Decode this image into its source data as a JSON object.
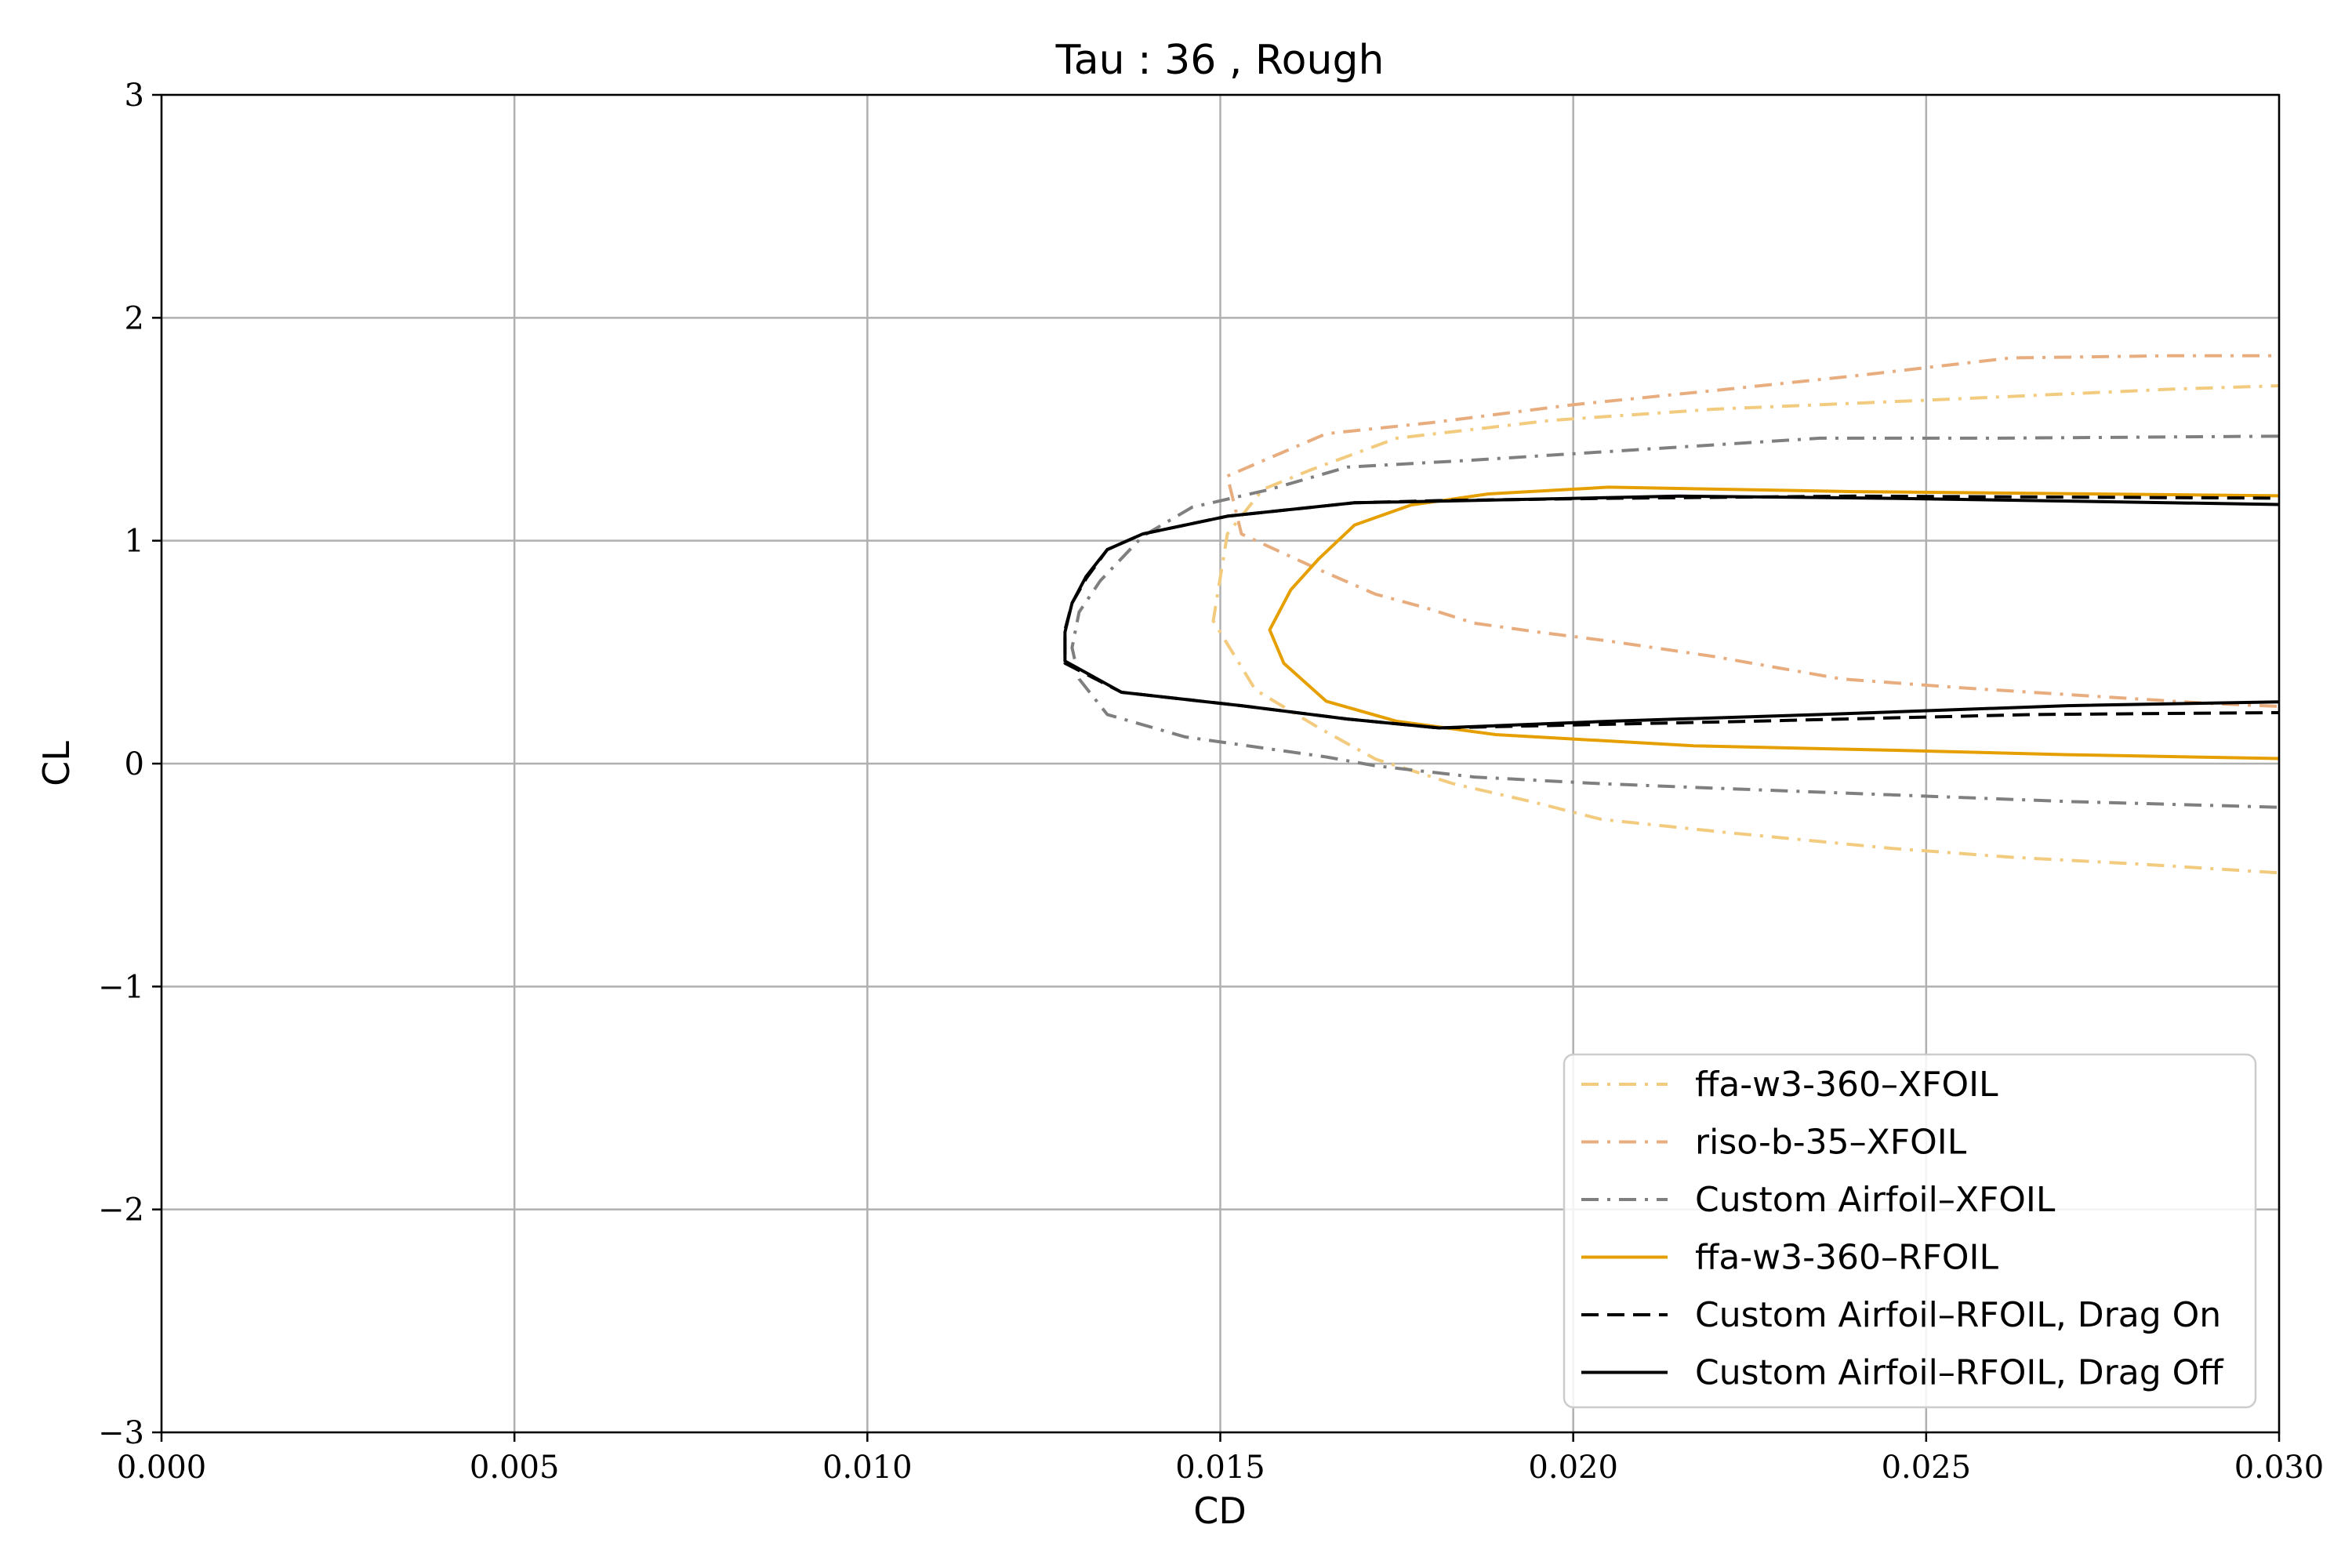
{
  "chart_data": {
    "type": "line",
    "title": "Tau : 36 , Rough",
    "xlabel": "CD",
    "ylabel": "CL",
    "xlim": [
      0.0,
      0.03
    ],
    "ylim": [
      -3,
      3
    ],
    "xticks": [
      0.0,
      0.005,
      0.01,
      0.015,
      0.02,
      0.025,
      0.03
    ],
    "xtick_labels": [
      "0.000",
      "0.005",
      "0.010",
      "0.015",
      "0.020",
      "0.025",
      "0.030"
    ],
    "yticks": [
      -3,
      -2,
      -1,
      0,
      1,
      2,
      3
    ],
    "ytick_labels": [
      "−3",
      "−2",
      "−1",
      "0",
      "1",
      "2",
      "3"
    ],
    "grid": true,
    "legend_position": "lower-right",
    "series": [
      {
        "name": "ffa-w3-360–XFOIL",
        "color": "#f2cb7f",
        "dash": "dashdot",
        "x": [
          0.0305,
          0.028,
          0.0262,
          0.0245,
          0.0222,
          0.0204,
          0.0194,
          0.0183,
          0.0172,
          0.0164,
          0.0155,
          0.0149,
          0.0151,
          0.0156,
          0.0163,
          0.0175,
          0.0197,
          0.022,
          0.025,
          0.0285,
          0.0305
        ],
        "y": [
          -0.5,
          -0.45,
          -0.42,
          -0.38,
          -0.31,
          -0.25,
          -0.17,
          -0.09,
          0.02,
          0.16,
          0.33,
          0.64,
          1.03,
          1.23,
          1.32,
          1.46,
          1.54,
          1.59,
          1.63,
          1.68,
          1.7
        ]
      },
      {
        "name": "riso-b-35–XFOIL",
        "color": "#e8ad7f",
        "dash": "dashdot",
        "x": [
          0.0305,
          0.029,
          0.027,
          0.0255,
          0.0238,
          0.022,
          0.0205,
          0.0195,
          0.0186,
          0.0179,
          0.0172,
          0.0164,
          0.0153,
          0.0151,
          0.0165,
          0.018,
          0.02,
          0.0222,
          0.024,
          0.0262,
          0.0285,
          0.0305
        ],
        "y": [
          0.25,
          0.27,
          0.31,
          0.34,
          0.38,
          0.48,
          0.55,
          0.59,
          0.63,
          0.7,
          0.76,
          0.87,
          1.03,
          1.29,
          1.48,
          1.53,
          1.61,
          1.68,
          1.74,
          1.82,
          1.83,
          1.83
        ]
      },
      {
        "name": "Custom Airfoil–XFOIL",
        "color": "#7f7f7f",
        "dash": "dashdot",
        "x": [
          0.0305,
          0.027,
          0.0245,
          0.022,
          0.0204,
          0.0186,
          0.0172,
          0.0165,
          0.0145,
          0.0134,
          0.013,
          0.0129,
          0.013,
          0.0133,
          0.0139,
          0.0146,
          0.0157,
          0.0168,
          0.0185,
          0.021,
          0.0235,
          0.026,
          0.0305
        ],
        "y": [
          -0.2,
          -0.17,
          -0.14,
          -0.11,
          -0.09,
          -0.06,
          -0.01,
          0.03,
          0.12,
          0.22,
          0.38,
          0.52,
          0.68,
          0.82,
          1.02,
          1.15,
          1.23,
          1.33,
          1.36,
          1.41,
          1.46,
          1.46,
          1.47
        ]
      },
      {
        "name": "ffa-w3-360–RFOIL",
        "color": "#e69f00",
        "dash": "solid",
        "x": [
          0.0305,
          0.027,
          0.0245,
          0.0217,
          0.0189,
          0.0175,
          0.0165,
          0.0159,
          0.0157,
          0.016,
          0.0164,
          0.0169,
          0.0177,
          0.0188,
          0.0205,
          0.024,
          0.0305
        ],
        "y": [
          0.02,
          0.04,
          0.06,
          0.08,
          0.13,
          0.19,
          0.28,
          0.45,
          0.6,
          0.78,
          0.92,
          1.07,
          1.16,
          1.21,
          1.24,
          1.22,
          1.2
        ]
      },
      {
        "name": "Custom Airfoil–RFOIL, Drag On",
        "color": "#000000",
        "dash": "dashed",
        "x": [
          0.0305,
          0.0265,
          0.0225,
          0.0195,
          0.0181,
          0.0168,
          0.0153,
          0.0136,
          0.0128,
          0.0128,
          0.0129,
          0.0131,
          0.0134,
          0.0139,
          0.0151,
          0.0169,
          0.0181,
          0.0205,
          0.024,
          0.0305
        ],
        "y": [
          0.23,
          0.22,
          0.19,
          0.17,
          0.16,
          0.2,
          0.26,
          0.32,
          0.45,
          0.6,
          0.72,
          0.83,
          0.96,
          1.03,
          1.11,
          1.17,
          1.18,
          1.19,
          1.2,
          1.19
        ]
      },
      {
        "name": "Custom Airfoil–RFOIL, Drag Off",
        "color": "#000000",
        "dash": "solid",
        "x": [
          0.0305,
          0.027,
          0.0235,
          0.0205,
          0.0181,
          0.0168,
          0.0153,
          0.0136,
          0.0128,
          0.0128,
          0.0129,
          0.0131,
          0.0134,
          0.0139,
          0.0151,
          0.0169,
          0.0185,
          0.0215,
          0.0245,
          0.0305
        ],
        "y": [
          0.28,
          0.26,
          0.22,
          0.19,
          0.16,
          0.2,
          0.26,
          0.32,
          0.46,
          0.59,
          0.72,
          0.84,
          0.96,
          1.03,
          1.11,
          1.17,
          1.18,
          1.2,
          1.19,
          1.16
        ]
      }
    ]
  }
}
